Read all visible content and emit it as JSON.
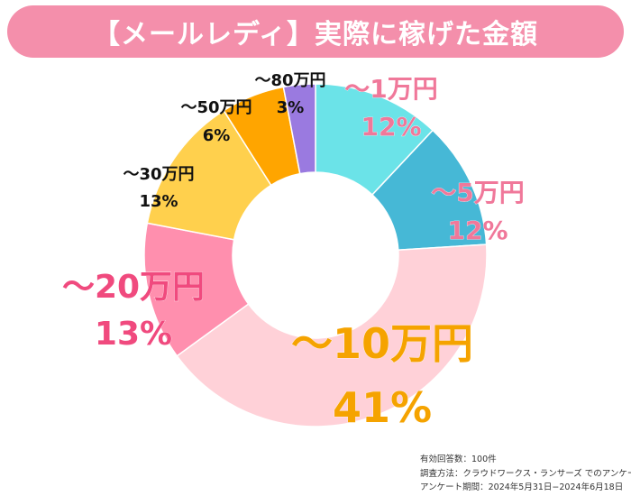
{
  "title": "【メールレディ】実際に稼げた金額",
  "chart_data": {
    "type": "pie",
    "title": "【メールレディ】実際に稼げた金額",
    "slices": [
      {
        "label": "～1万円",
        "value": 12,
        "pct": "12%",
        "color": "#6be3e8",
        "label_color": "#f0789a"
      },
      {
        "label": "～5万円",
        "value": 12,
        "pct": "12%",
        "color": "#46b8d6",
        "label_color": "#f0789a"
      },
      {
        "label": "～10万円",
        "value": 41,
        "pct": "41%",
        "color": "#ffd1d8",
        "label_color": "#f5a300"
      },
      {
        "label": "～20万円",
        "value": 13,
        "pct": "13%",
        "color": "#ff8fae",
        "label_color": "#f04a7e"
      },
      {
        "label": "～30万円",
        "value": 13,
        "pct": "13%",
        "color": "#ffd04d",
        "label_color": "#111111"
      },
      {
        "label": "～50万円",
        "value": 6,
        "pct": "6%",
        "color": "#ffa500",
        "label_color": "#111111"
      },
      {
        "label": "～80万円",
        "value": 3,
        "pct": "3%",
        "color": "#9a7ae0",
        "label_color": "#111111"
      }
    ]
  },
  "notes": {
    "respondents": "有効回答数：100件",
    "method": "調査方法：クラウドワークス・ランサーズ でのアンケート",
    "period": "アンケート期間：2024年5月31日−2024年6月18日"
  }
}
